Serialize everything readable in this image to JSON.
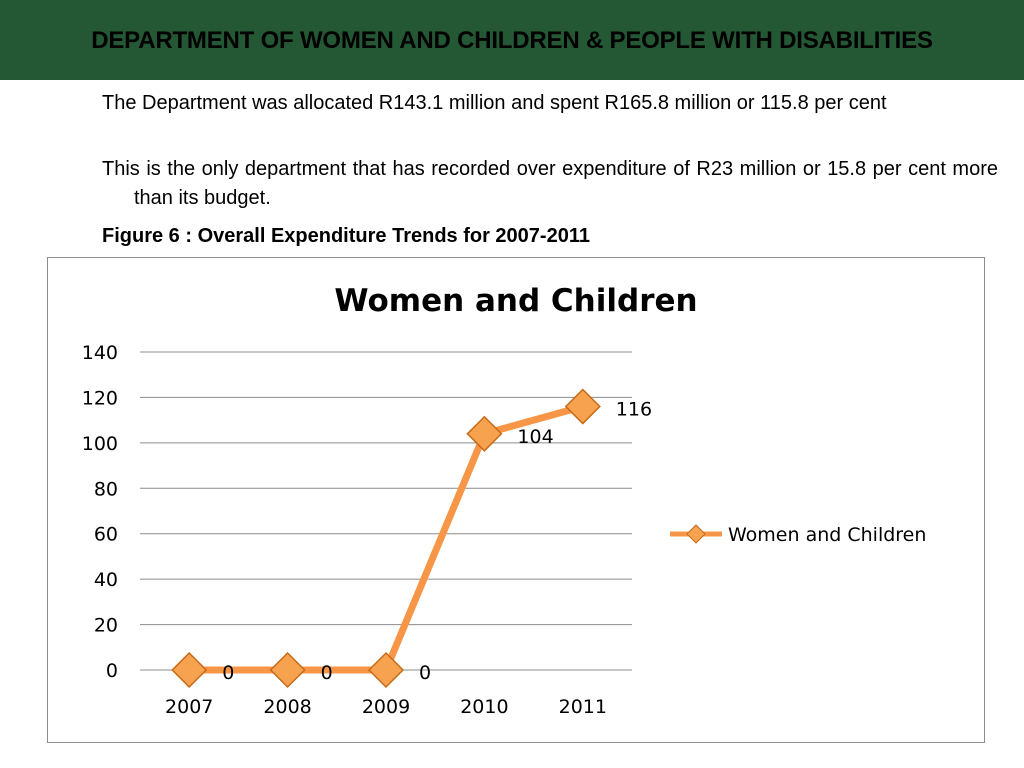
{
  "header": {
    "title": "DEPARTMENT OF WOMEN AND CHILDREN & PEOPLE WITH DISABILITIES"
  },
  "body": {
    "paragraphs": [
      "The Department was allocated R143.1 million and spent R165.8 million or 115.8 per cent",
      "This is the only department that has recorded over expenditure of R23 million or 15.8 per cent more than its budget."
    ],
    "figure_caption": "Figure 6 : Overall Expenditure Trends for 2007-2011"
  },
  "colors": {
    "header_bg": "#245733",
    "series_line": "#F79646",
    "marker_fill": "#F6A24F",
    "gridline": "#8c8c8c"
  },
  "chart_data": {
    "type": "line",
    "title": "Women and Children",
    "categories": [
      "2007",
      "2008",
      "2009",
      "2010",
      "2011"
    ],
    "series": [
      {
        "name": "Women and Children",
        "values": [
          0,
          0,
          0,
          104,
          116
        ],
        "data_labels": [
          "0",
          "0",
          "0",
          "104",
          "116"
        ]
      }
    ],
    "ylim": [
      0,
      140
    ],
    "yticks": [
      0,
      20,
      40,
      60,
      80,
      100,
      120,
      140
    ],
    "grid": true,
    "legend_position": "right",
    "marker": "diamond"
  }
}
